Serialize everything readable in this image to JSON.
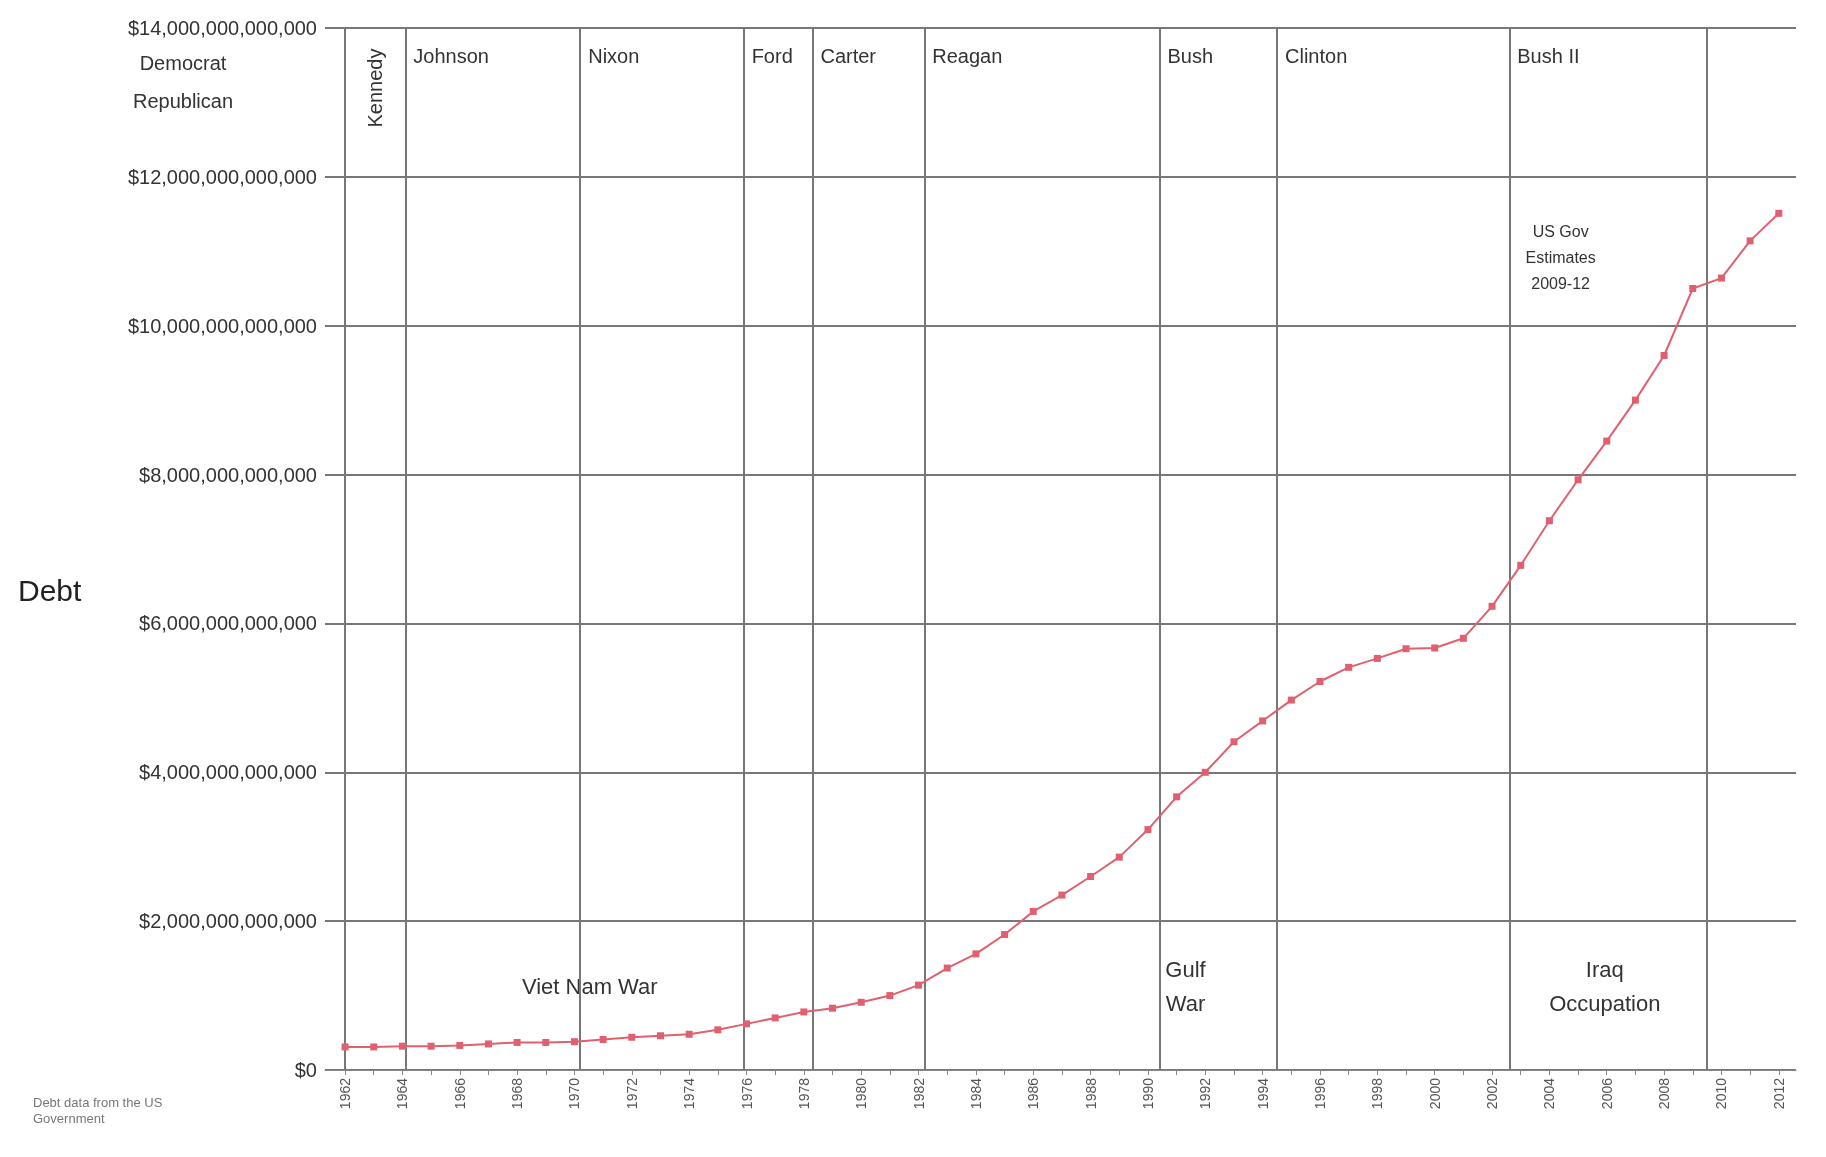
{
  "chart_data": {
    "type": "line",
    "ylabel": "Debt",
    "x": [
      1962,
      1963,
      1964,
      1965,
      1966,
      1967,
      1968,
      1969,
      1970,
      1971,
      1972,
      1973,
      1974,
      1975,
      1976,
      1977,
      1978,
      1979,
      1980,
      1981,
      1982,
      1983,
      1984,
      1985,
      1986,
      1987,
      1988,
      1989,
      1990,
      1991,
      1992,
      1993,
      1994,
      1995,
      1996,
      1997,
      1998,
      1999,
      2000,
      2001,
      2002,
      2003,
      2004,
      2005,
      2006,
      2007,
      2008,
      2009,
      2010,
      2011,
      2012
    ],
    "series": [
      {
        "color": "#e06070",
        "values": [
          310000000000,
          310000000000,
          320000000000,
          320000000000,
          330000000000,
          350000000000,
          370000000000,
          370000000000,
          380000000000,
          410000000000,
          440000000000,
          460000000000,
          480000000000,
          540000000000,
          620000000000,
          700000000000,
          780000000000,
          830000000000,
          910000000000,
          1000000000000,
          1140000000000,
          1370000000000,
          1560000000000,
          1820000000000,
          2130000000000,
          2350000000000,
          2600000000000,
          2860000000000,
          3230000000000,
          3670000000000,
          4000000000000,
          4410000000000,
          4690000000000,
          4970000000000,
          5220000000000,
          5410000000000,
          5530000000000,
          5660000000000,
          5670000000000,
          5800000000000,
          6230000000000,
          6780000000000,
          7380000000000,
          7930000000000,
          8450000000000,
          9000000000000,
          9600000000000,
          10500000000000,
          10640000000000,
          11140000000000,
          11510000000000
        ]
      }
    ],
    "marker": "square",
    "xlim": [
      1961.3,
      2012.6
    ],
    "xticks": [
      {
        "value": 1962,
        "label": "1962"
      },
      {
        "value": 1963,
        "label": null
      },
      {
        "value": 1964,
        "label": "1964"
      },
      {
        "value": 1965,
        "label": null
      },
      {
        "value": 1966,
        "label": "1966"
      },
      {
        "value": 1967,
        "label": null
      },
      {
        "value": 1968,
        "label": "1968"
      },
      {
        "value": 1969,
        "label": null
      },
      {
        "value": 1970,
        "label": "1970"
      },
      {
        "value": 1971,
        "label": null
      },
      {
        "value": 1972,
        "label": "1972"
      },
      {
        "value": 1973,
        "label": null
      },
      {
        "value": 1974,
        "label": "1974"
      },
      {
        "value": 1975,
        "label": null
      },
      {
        "value": 1976,
        "label": "1976"
      },
      {
        "value": 1977,
        "label": null
      },
      {
        "value": 1978,
        "label": "1978"
      },
      {
        "value": 1979,
        "label": null
      },
      {
        "value": 1980,
        "label": "1980"
      },
      {
        "value": 1981,
        "label": null
      },
      {
        "value": 1982,
        "label": "1982"
      },
      {
        "value": 1983,
        "label": null
      },
      {
        "value": 1984,
        "label": "1984"
      },
      {
        "value": 1985,
        "label": null
      },
      {
        "value": 1986,
        "label": "1986"
      },
      {
        "value": 1987,
        "label": null
      },
      {
        "value": 1988,
        "label": "1988"
      },
      {
        "value": 1989,
        "label": null
      },
      {
        "value": 1990,
        "label": "1990"
      },
      {
        "value": 1991,
        "label": null
      },
      {
        "value": 1992,
        "label": "1992"
      },
      {
        "value": 1993,
        "label": null
      },
      {
        "value": 1994,
        "label": "1994"
      },
      {
        "value": 1995,
        "label": null
      },
      {
        "value": 1996,
        "label": "1996"
      },
      {
        "value": 1997,
        "label": null
      },
      {
        "value": 1998,
        "label": "1998"
      },
      {
        "value": 1999,
        "label": null
      },
      {
        "value": 2000,
        "label": "2000"
      },
      {
        "value": 2001,
        "label": null
      },
      {
        "value": 2002,
        "label": "2002"
      },
      {
        "value": 2003,
        "label": null
      },
      {
        "value": 2004,
        "label": "2004"
      },
      {
        "value": 2005,
        "label": null
      },
      {
        "value": 2006,
        "label": "2006"
      },
      {
        "value": 2007,
        "label": null
      },
      {
        "value": 2008,
        "label": "2008"
      },
      {
        "value": 2009,
        "label": null
      },
      {
        "value": 2010,
        "label": "2010"
      },
      {
        "value": 2011,
        "label": null
      },
      {
        "value": 2012,
        "label": "2012"
      }
    ],
    "ylim": [
      0,
      14000000000000
    ],
    "yticks": [
      {
        "value": 0,
        "label": "$0"
      },
      {
        "value": 2000000000000,
        "label": "$2,000,000,000,000"
      },
      {
        "value": 4000000000000,
        "label": "$4,000,000,000,000"
      },
      {
        "value": 6000000000000,
        "label": "$6,000,000,000,000"
      },
      {
        "value": 8000000000000,
        "label": "$8,000,000,000,000"
      },
      {
        "value": 10000000000000,
        "label": "$10,000,000,000,000"
      },
      {
        "value": 12000000000000,
        "label": "$12,000,000,000,000"
      },
      {
        "value": 14000000000000,
        "label": "$14,000,000,000,000"
      }
    ],
    "grid": "y",
    "ref_lines": [
      {
        "axis": "x",
        "value": 1962.0,
        "label": "Kennedy",
        "color": "#777777"
      },
      {
        "axis": "x",
        "value": 1964.1,
        "label": "Johnson",
        "color": "#777777"
      },
      {
        "axis": "x",
        "value": 1970.2,
        "label": "Nixon",
        "color": "#777777"
      },
      {
        "axis": "x",
        "value": 1975.9,
        "label": "Ford",
        "color": "#777777"
      },
      {
        "axis": "x",
        "value": 1978.3,
        "label": "Carter",
        "color": "#777777"
      },
      {
        "axis": "x",
        "value": 1982.2,
        "label": "Reagan",
        "color": "#777777"
      },
      {
        "axis": "x",
        "value": 1990.4,
        "label": "Bush",
        "color": "#777777"
      },
      {
        "axis": "x",
        "value": 1994.5,
        "label": "Clinton",
        "color": "#777777"
      },
      {
        "axis": "x",
        "value": 2002.6,
        "label": "Bush II",
        "color": "#777777"
      },
      {
        "axis": "x",
        "value": 2009.5,
        "color": "#777777"
      }
    ],
    "annotations": [
      "Democrat",
      "Republican",
      "Viet Nam War",
      "Gulf War",
      "Iraq Occupation",
      "US Gov Estimates 2009-12",
      "Debt data from the US Government"
    ]
  }
}
